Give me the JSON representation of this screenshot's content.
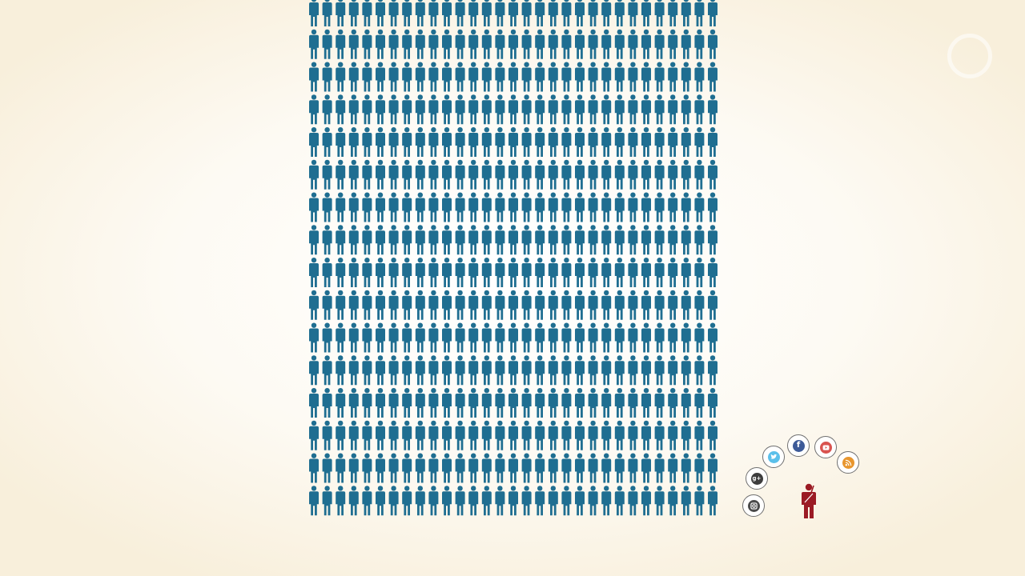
{
  "scene": {
    "people_grid": {
      "columns": 31,
      "rows": 16,
      "figure_color": "#1f6e91"
    },
    "highlighted_person": {
      "figure_color": "#9b1b24"
    },
    "social_icons": [
      {
        "name": "instagram-icon",
        "color": "#4a4a4a"
      },
      {
        "name": "google-plus-icon",
        "color": "#3d3d3d"
      },
      {
        "name": "twitter-icon",
        "color": "#5bc0ea"
      },
      {
        "name": "facebook-icon",
        "color": "#3d5a98"
      },
      {
        "name": "youtube-icon",
        "color": "#d9534f"
      },
      {
        "name": "rss-icon",
        "color": "#e8962e"
      }
    ],
    "background_color": "#fbf6ea"
  }
}
